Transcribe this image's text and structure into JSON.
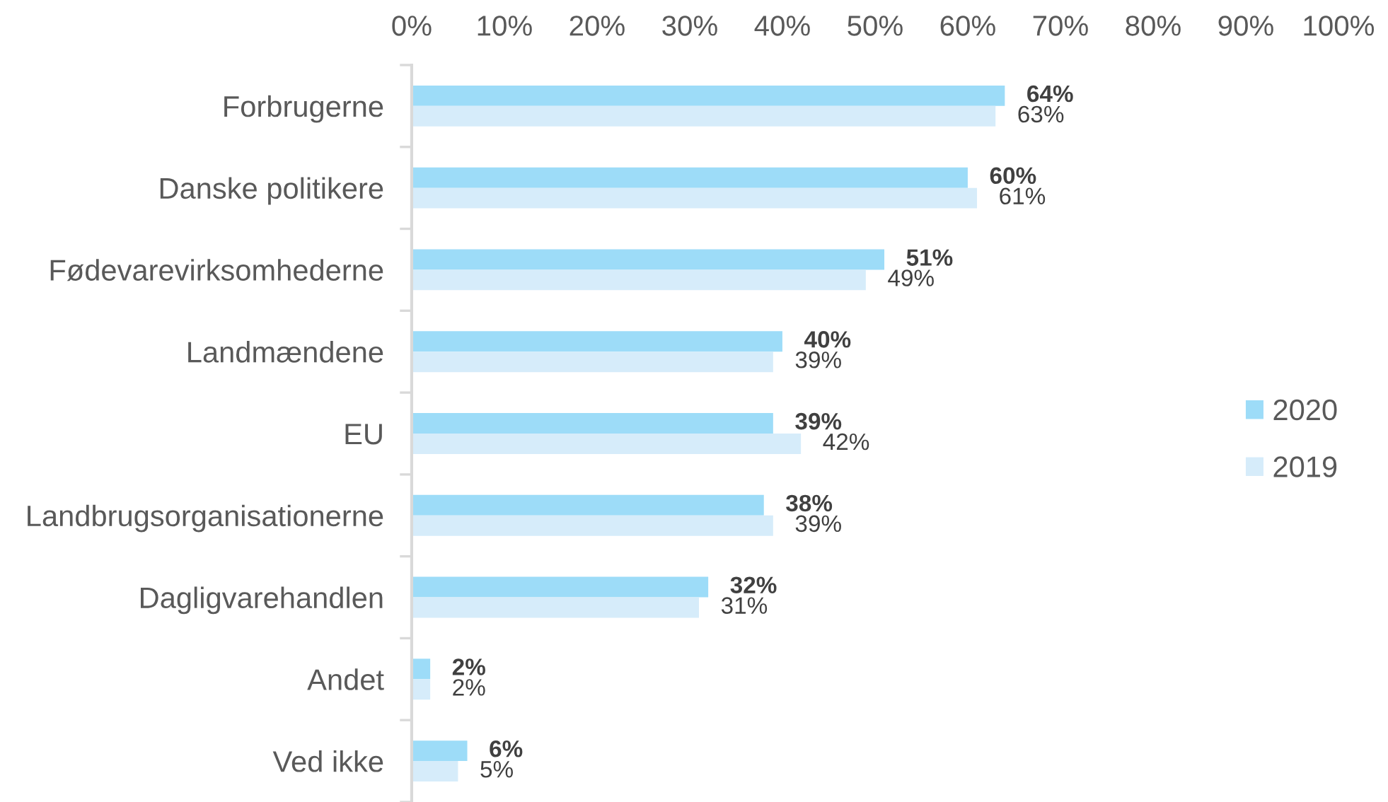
{
  "chart_data": {
    "type": "bar",
    "orientation": "horizontal",
    "categories": [
      "Forbrugerne",
      "Danske politikere",
      "Fødevarevirksomhederne",
      "Landmændene",
      "EU",
      "Landbrugsorganisationerne",
      "Dagligvarehandlen",
      "Andet",
      "Ved ikke"
    ],
    "series": [
      {
        "name": "2020",
        "color": "#9ddcf8",
        "values": [
          64,
          60,
          51,
          40,
          39,
          38,
          32,
          2,
          6
        ],
        "value_labels": [
          "64%",
          "60%",
          "51%",
          "40%",
          "39%",
          "38%",
          "32%",
          "2%",
          "6%"
        ]
      },
      {
        "name": "2019",
        "color": "#d6ecfa",
        "values": [
          63,
          61,
          49,
          39,
          42,
          39,
          31,
          2,
          5
        ],
        "value_labels": [
          "63%",
          "61%",
          "49%",
          "39%",
          "42%",
          "39%",
          "31%",
          "2%",
          "5%"
        ]
      }
    ],
    "xlim": [
      0,
      100
    ],
    "xticks": [
      {
        "value": 0,
        "label": "0%"
      },
      {
        "value": 10,
        "label": "10%"
      },
      {
        "value": 20,
        "label": "20%"
      },
      {
        "value": 30,
        "label": "30%"
      },
      {
        "value": 40,
        "label": "40%"
      },
      {
        "value": 50,
        "label": "50%"
      },
      {
        "value": 60,
        "label": "60%"
      },
      {
        "value": 70,
        "label": "70%"
      },
      {
        "value": 80,
        "label": "80%"
      },
      {
        "value": 90,
        "label": "90%"
      },
      {
        "value": 100,
        "label": "100%"
      }
    ],
    "legend": "right",
    "grid": false
  }
}
